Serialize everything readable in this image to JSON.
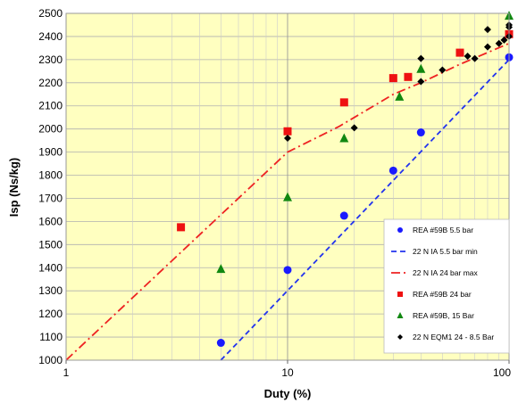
{
  "chart_data": {
    "type": "scatter",
    "title": "",
    "xlabel": "Duty (%)",
    "ylabel": "Isp (Ns/kg)",
    "x_scale": "log",
    "xlim": [
      1,
      100
    ],
    "ylim": [
      1000,
      2500
    ],
    "x_ticks": [
      1,
      10,
      100
    ],
    "x_tick_labels": [
      "1",
      "10",
      "100"
    ],
    "y_ticks": [
      1000,
      1100,
      1200,
      1300,
      1400,
      1500,
      1600,
      1700,
      1800,
      1900,
      2000,
      2100,
      2200,
      2300,
      2400,
      2500
    ],
    "y_tick_labels": [
      "1000",
      "1100",
      "1200",
      "1300",
      "1400",
      "1500",
      "1600",
      "1700",
      "1800",
      "1900",
      "2000",
      "2100",
      "2200",
      "2300",
      "2400",
      "2500"
    ],
    "grid": true,
    "legend_position": "bottom-right",
    "background_color": "#ffffc0",
    "series": [
      {
        "name": "REA #59B 5.5 bar",
        "kind": "marker",
        "marker": "circle",
        "color": "#1a1aff",
        "x": [
          5,
          10,
          18,
          30,
          40,
          100
        ],
        "y": [
          1075,
          1390,
          1625,
          1820,
          1985,
          2310
        ]
      },
      {
        "name": "22 N IA 5.5 bar min",
        "kind": "line",
        "dash": "dashed",
        "color": "#2233ee",
        "x": [
          5,
          100
        ],
        "y": [
          1000,
          2300
        ]
      },
      {
        "name": "22 N IA 24 bar max",
        "kind": "line",
        "dash": "dashdot",
        "color": "#ee2222",
        "x": [
          1,
          10,
          17,
          30,
          40,
          60,
          100
        ],
        "y": [
          1000,
          1900,
          2010,
          2150,
          2200,
          2280,
          2370
        ]
      },
      {
        "name": "REA #59B 24 bar",
        "kind": "marker",
        "marker": "square",
        "color": "#ee1111",
        "x": [
          3.3,
          10,
          18,
          30,
          35,
          60,
          100
        ],
        "y": [
          1575,
          1990,
          2115,
          2220,
          2225,
          2330,
          2410
        ]
      },
      {
        "name": "REA #59B, 15 Bar",
        "kind": "marker",
        "marker": "triangle",
        "color": "#118811",
        "x": [
          5,
          10,
          18,
          32,
          40,
          100
        ],
        "y": [
          1395,
          1705,
          1960,
          2140,
          2260,
          2490
        ]
      },
      {
        "name": "22 N EQM1 24 - 8.5 Bar",
        "kind": "marker",
        "marker": "diamond",
        "color": "#000000",
        "x": [
          10,
          20,
          40,
          40,
          50,
          65,
          70,
          80,
          80,
          90,
          95,
          100,
          100,
          100
        ],
        "y": [
          1960,
          2005,
          2305,
          2205,
          2255,
          2315,
          2305,
          2355,
          2430,
          2370,
          2385,
          2400,
          2440,
          2450
        ]
      }
    ]
  }
}
